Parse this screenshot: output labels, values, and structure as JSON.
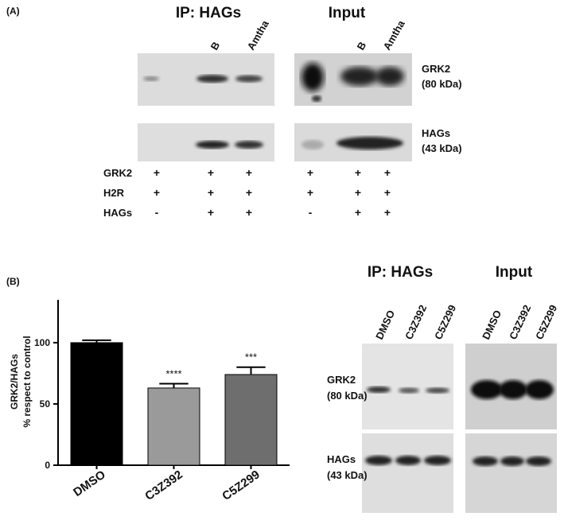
{
  "panel_a": {
    "label": "(A)",
    "ip_title": "IP: HAGs",
    "input_title": "Input",
    "ip_lanes": [
      "B",
      "Amtha"
    ],
    "input_lanes": [
      "B",
      "Amtha"
    ],
    "blot_labels": [
      [
        "GRK2",
        "(80 kDa)"
      ],
      [
        "HAGs",
        "(43 kDa)"
      ]
    ],
    "conditions": [
      {
        "name": "GRK2",
        "marks": [
          "+",
          "+",
          "+",
          "+",
          "+",
          "+"
        ]
      },
      {
        "name": "H2R",
        "marks": [
          "+",
          "+",
          "+",
          "+",
          "+",
          "+"
        ]
      },
      {
        "name": "HAGs",
        "marks": [
          "-",
          "+",
          "+",
          "-",
          "+",
          "+"
        ]
      }
    ]
  },
  "panel_b": {
    "label": "(B)",
    "ip_title": "IP: HAGs",
    "input_title": "Input",
    "lanes": [
      "DMSO",
      "C3Z392",
      "C5Z299"
    ],
    "blot_labels": [
      [
        "GRK2",
        "(80 kDa)"
      ],
      [
        "HAGs",
        "(43 kDa)"
      ]
    ]
  },
  "chart_data": {
    "type": "bar",
    "y_label": [
      "GRK2/HAGs",
      "% respect to control"
    ],
    "categories": [
      "DMSO",
      "C3Z392",
      "C5Z299"
    ],
    "values": [
      100,
      63,
      74
    ],
    "errors": [
      2,
      3.5,
      6
    ],
    "colors": [
      "#000000",
      "#9a9a9a",
      "#6e6e6e"
    ],
    "significance": [
      null,
      "****",
      "***"
    ],
    "ylim": [
      0,
      135
    ],
    "yticks": [
      0,
      50,
      100
    ]
  }
}
